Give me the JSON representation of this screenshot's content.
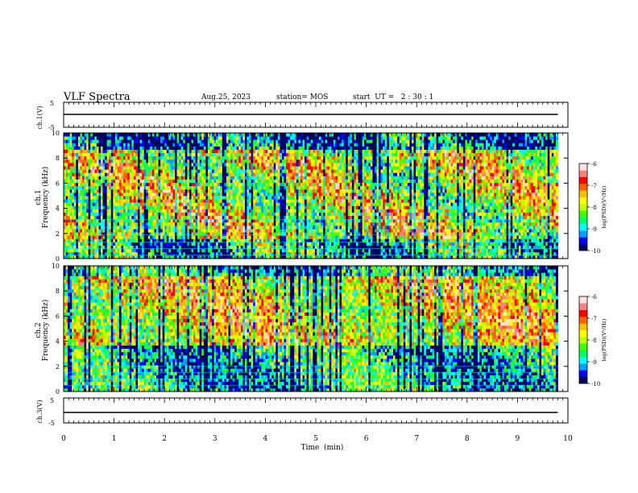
{
  "header": {
    "title": "VLF Spectra",
    "date": "Aug.25, 2023",
    "station": "station= MOS",
    "start_ut": "start  UT =   2 : 30 : 1"
  },
  "colors": {
    "colormap": [
      "#000060",
      "#0000ff",
      "#00a0ff",
      "#00ffff",
      "#00ff60",
      "#40ff00",
      "#c0ff00",
      "#ffff00",
      "#ffc000",
      "#ff6000",
      "#ff0000",
      "#ff8080",
      "#ffe0e0"
    ],
    "background": "#ffffff",
    "axis": "#000000"
  },
  "chart_data": [
    {
      "type": "line",
      "panel": "ch1-voltage",
      "ylabel": "ch.1(V)",
      "ylim": [
        -5,
        5
      ],
      "ytick_labels": [
        "5",
        "-5"
      ],
      "xlim": [
        0,
        10
      ],
      "series": [
        {
          "x": [
            0,
            9.8
          ],
          "y": [
            0,
            0
          ]
        }
      ]
    },
    {
      "type": "heatmap",
      "panel": "ch1-spectrogram",
      "ylabel": "ch.1  Frequency (kHz)",
      "ylim": [
        0,
        10
      ],
      "ytick_labels": [
        "0",
        "2",
        "4",
        "6",
        "8",
        "10"
      ],
      "xlim": [
        0,
        10
      ],
      "data_end_min": 9.8,
      "colorbar": {
        "label": "log(PSD)(V²/Hz)",
        "range": [
          -10,
          -6
        ],
        "tick_labels": [
          "-6",
          "-7",
          "-8",
          "-9",
          "-10"
        ]
      }
    },
    {
      "type": "heatmap",
      "panel": "ch2-spectrogram",
      "ylabel": "ch.2  Frequency (kHz)",
      "ylim": [
        0,
        10
      ],
      "ytick_labels": [
        "0",
        "2",
        "4",
        "6",
        "8",
        "10"
      ],
      "xlim": [
        0,
        10
      ],
      "data_end_min": 9.8,
      "colorbar": {
        "label": "log(PSD)(V²/Hz)",
        "range": [
          -10,
          -6
        ],
        "tick_labels": [
          "-6",
          "-7",
          "-8",
          "-9",
          "-10"
        ]
      }
    },
    {
      "type": "line",
      "panel": "ch3-voltage",
      "ylabel": "ch.3(V)",
      "ylim": [
        -5,
        5
      ],
      "ytick_labels": [
        "5",
        "-5"
      ],
      "xlim": [
        0,
        10
      ],
      "series": [
        {
          "x": [
            0,
            9.8
          ],
          "y": [
            0,
            0
          ]
        }
      ]
    }
  ],
  "xaxis": {
    "label": "Time  (min)",
    "tick_labels": [
      "0",
      "1",
      "2",
      "3",
      "4",
      "5",
      "6",
      "7",
      "8",
      "9",
      "10"
    ]
  }
}
